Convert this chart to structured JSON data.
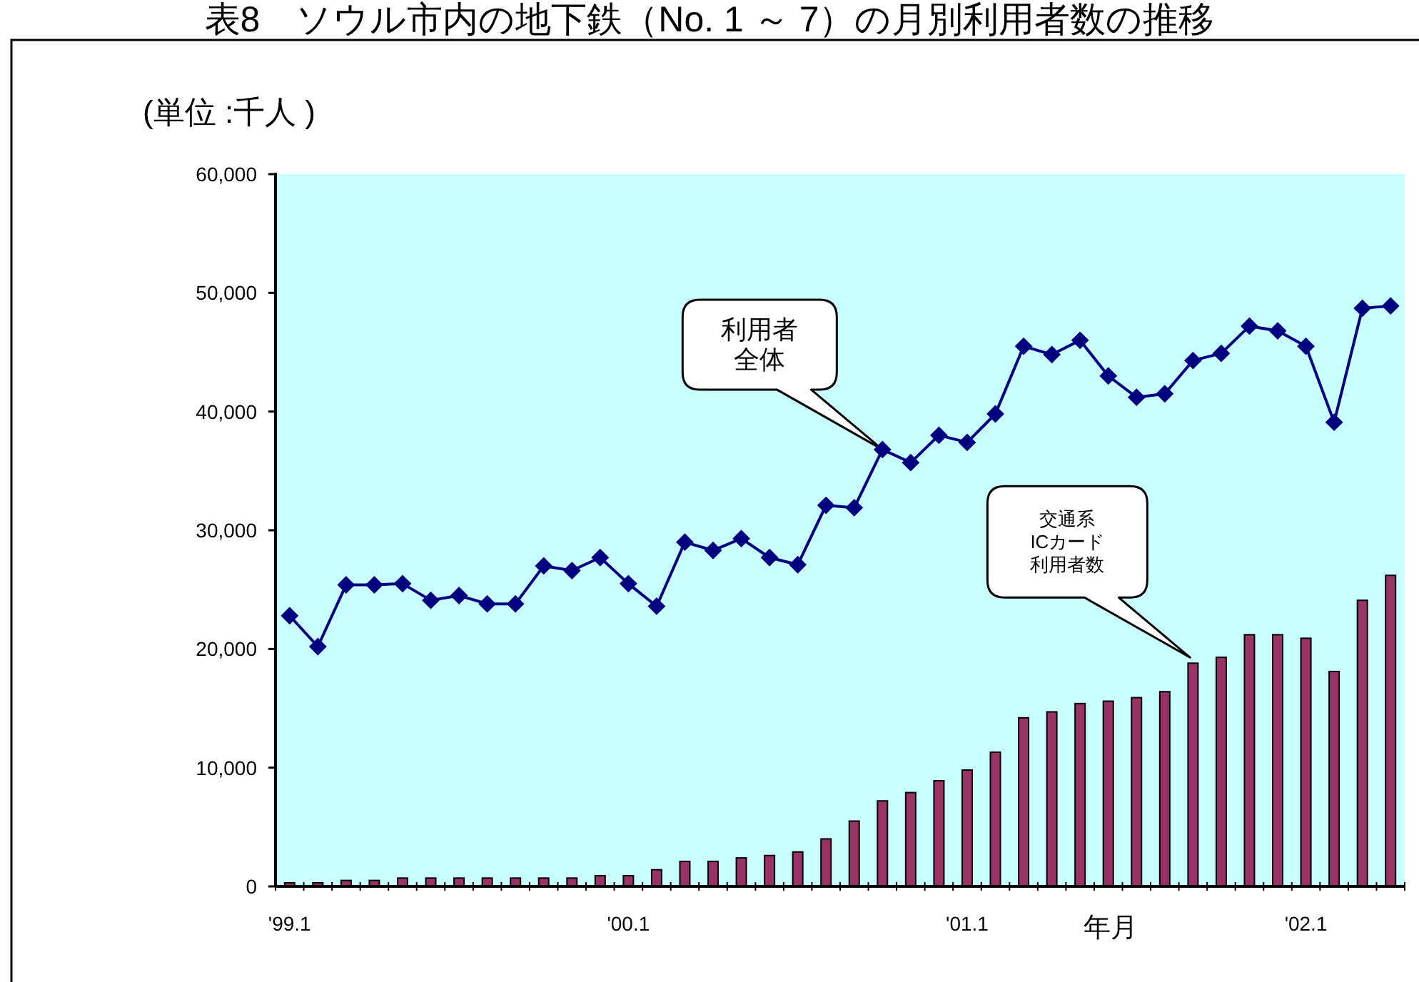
{
  "chart_data": {
    "type": "bar",
    "title": "表8　ソウル市内の地下鉄（No. 1 ～ 7）の月別利用者数の推移",
    "ylabel": "(単位 :千人 )",
    "xlabel": "年月",
    "categories": [
      "'99.1",
      null,
      null,
      null,
      null,
      null,
      null,
      null,
      null,
      null,
      null,
      null,
      "'00.1",
      null,
      null,
      null,
      null,
      null,
      null,
      null,
      null,
      null,
      null,
      null,
      "'01.1",
      null,
      null,
      null,
      null,
      null,
      null,
      null,
      null,
      null,
      null,
      null,
      "'02.1",
      null,
      null,
      null
    ],
    "series": [
      {
        "color": "#993366",
        "values": [
          300,
          300,
          500,
          500,
          700,
          700,
          700,
          700,
          700,
          700,
          700,
          900,
          900,
          1400,
          2100,
          2100,
          2400,
          2600,
          2900,
          4000,
          5500,
          7200,
          7900,
          8900,
          9800,
          11300,
          14200,
          14700,
          15400,
          15600,
          15900,
          16400,
          18800,
          19300,
          21200,
          21200,
          20900,
          18100,
          24100,
          26200
        ]
      },
      {
        "type": "line",
        "color": "#000080",
        "values": [
          22800,
          20200,
          25400,
          25400,
          25500,
          24100,
          24500,
          23800,
          23800,
          27000,
          26600,
          27700,
          25500,
          23600,
          29000,
          28300,
          29300,
          27700,
          27100,
          32100,
          31900,
          36800,
          35700,
          38000,
          37400,
          39800,
          45500,
          44800,
          46000,
          43000,
          41200,
          41500,
          44300,
          44900,
          47200,
          46800,
          45500,
          39100,
          48700,
          48900
        ]
      }
    ],
    "annotations": [
      "利用者全体",
      "交通系ICカード利用者数"
    ],
    "ylim": [
      0,
      60000
    ],
    "yticks": [
      0,
      {
        "value": 10000,
        "label": "10,000"
      },
      {
        "value": 20000,
        "label": "20,000"
      },
      {
        "value": 30000,
        "label": "30,000"
      },
      {
        "value": 40000,
        "label": "40,000"
      },
      {
        "value": 50000,
        "label": "50,000"
      },
      {
        "value": 60000,
        "label": "60,000"
      }
    ],
    "marker": "diamond",
    "line_style": "solid"
  }
}
